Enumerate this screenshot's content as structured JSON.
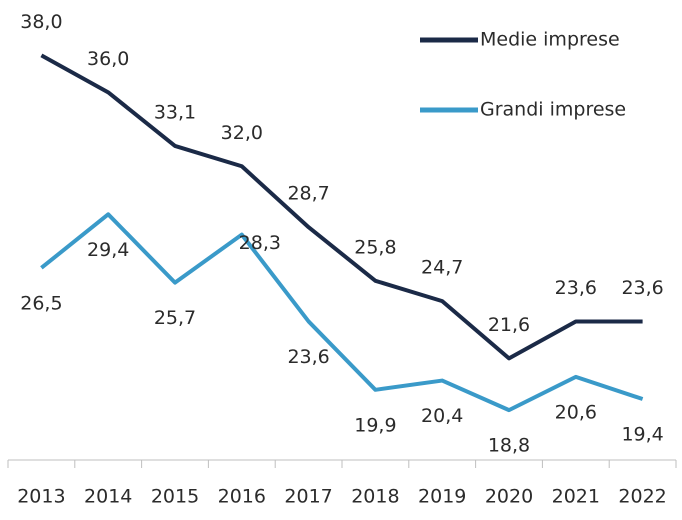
{
  "chart_data": {
    "type": "line",
    "categories": [
      "2013",
      "2014",
      "2015",
      "2016",
      "2017",
      "2018",
      "2019",
      "2020",
      "2021",
      "2022"
    ],
    "series": [
      {
        "name": "Medie imprese",
        "color": "#1b2a47",
        "values": [
          38.0,
          36.0,
          33.1,
          32.0,
          28.7,
          25.8,
          24.7,
          21.6,
          23.6,
          23.6
        ],
        "value_labels": [
          "38,0",
          "36,0",
          "33,1",
          "32,0",
          "28,7",
          "25,8",
          "24,7",
          "21,6",
          "23,6",
          "23,6"
        ]
      },
      {
        "name": "Grandi imprese",
        "color": "#3a9ac9",
        "values": [
          26.5,
          29.4,
          25.7,
          28.3,
          23.6,
          19.9,
          20.4,
          18.8,
          20.6,
          19.4
        ],
        "value_labels": [
          "26,5",
          "29,4",
          "25,7",
          "28,3",
          "23,6",
          "19,9",
          "20,4",
          "18,8",
          "20,6",
          "19,4"
        ]
      }
    ],
    "ylim": [
      16.1,
      41.0
    ],
    "legend": "top-right"
  }
}
